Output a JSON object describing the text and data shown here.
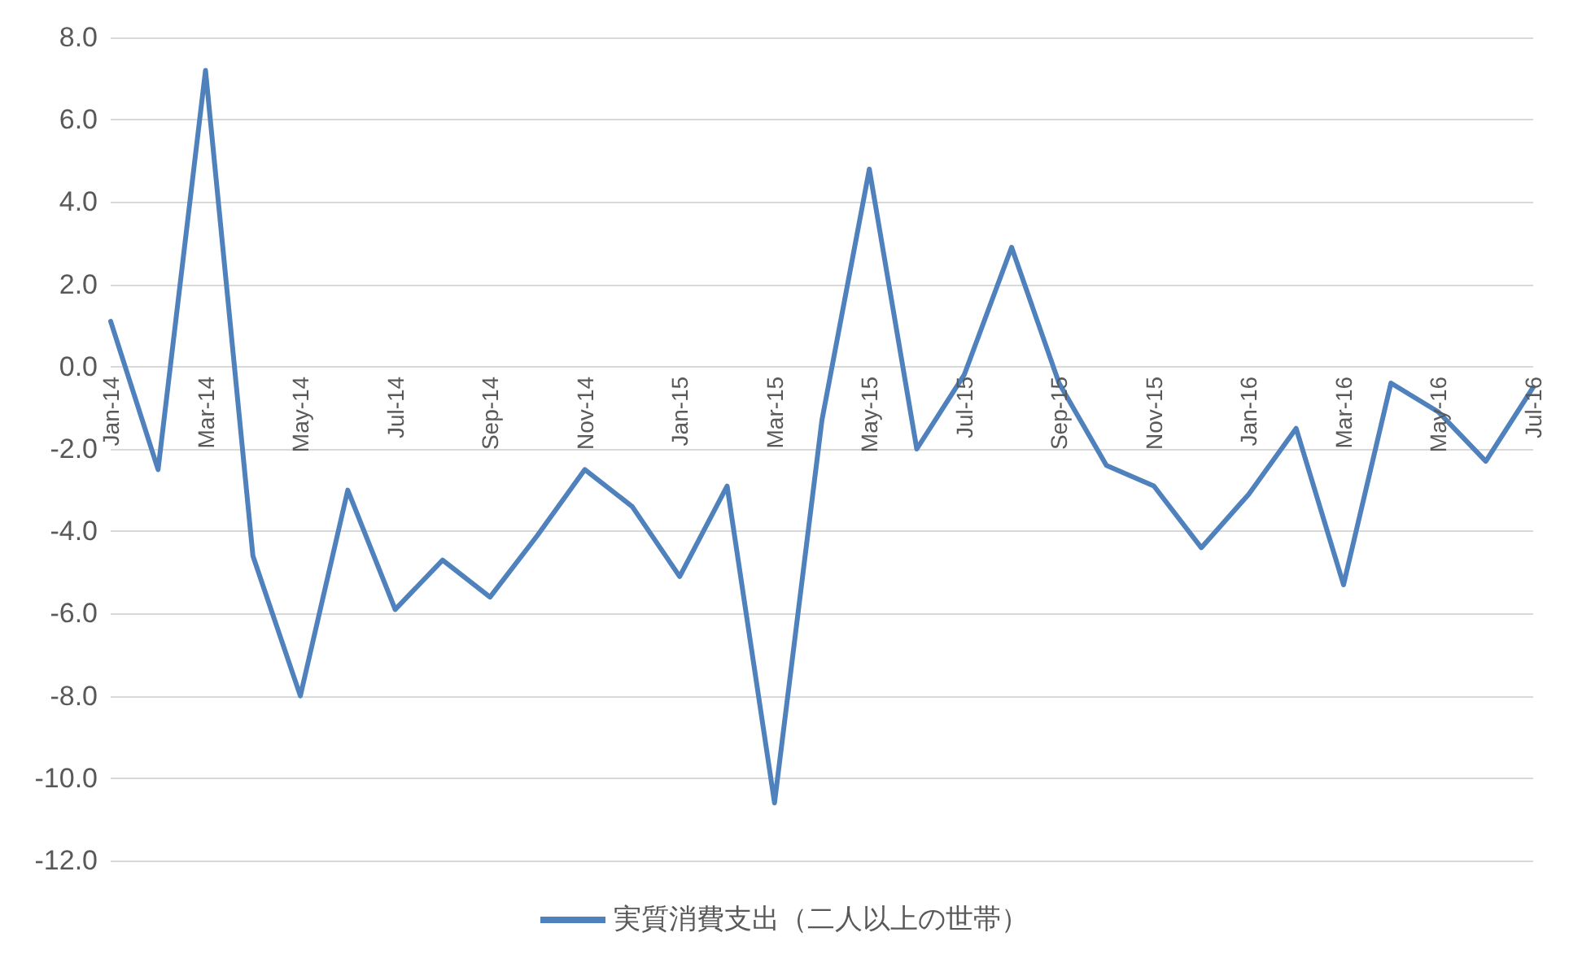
{
  "chart_data": {
    "type": "line",
    "categories": [
      "Jan-14",
      null,
      "Mar-14",
      null,
      "May-14",
      null,
      "Jul-14",
      null,
      "Sep-14",
      null,
      "Nov-14",
      null,
      "Jan-15",
      null,
      "Mar-15",
      null,
      "May-15",
      null,
      "Jul-15",
      null,
      "Sep-15",
      null,
      "Nov-15",
      null,
      "Jan-16",
      null,
      "Mar-16",
      null,
      "May-16",
      null,
      "Jul-16"
    ],
    "series": [
      {
        "name": "実質消費支出（二人以上の世帯）",
        "color": "#4f81bd",
        "values": [
          1.1,
          -2.5,
          7.2,
          -4.6,
          -8.0,
          -3.0,
          -5.9,
          -4.7,
          -5.6,
          -4.1,
          -2.5,
          -3.4,
          -5.1,
          -2.9,
          -10.6,
          -1.3,
          4.8,
          -2.0,
          -0.2,
          2.9,
          -0.4,
          -2.4,
          -2.9,
          -4.4,
          -3.1,
          -1.5,
          -5.3,
          -0.4,
          -1.1,
          -2.3,
          -0.5
        ]
      }
    ],
    "ylim": [
      -12,
      8
    ],
    "yticks": [
      {
        "value": -12,
        "label": "-12.0"
      },
      {
        "value": -10,
        "label": "-10.0"
      },
      {
        "value": -8,
        "label": "-8.0"
      },
      {
        "value": -6,
        "label": "-6.0"
      },
      {
        "value": -4,
        "label": "-4.0"
      },
      {
        "value": -2,
        "label": "-2.0"
      },
      {
        "value": 0,
        "label": "0.0"
      },
      {
        "value": 2,
        "label": "2.0"
      },
      {
        "value": 4,
        "label": "4.0"
      },
      {
        "value": 6,
        "label": "6.0"
      },
      {
        "value": 8,
        "label": "8.0"
      }
    ],
    "grid": "y",
    "legend": "bottom",
    "marker": "none",
    "line_style": "solid"
  }
}
